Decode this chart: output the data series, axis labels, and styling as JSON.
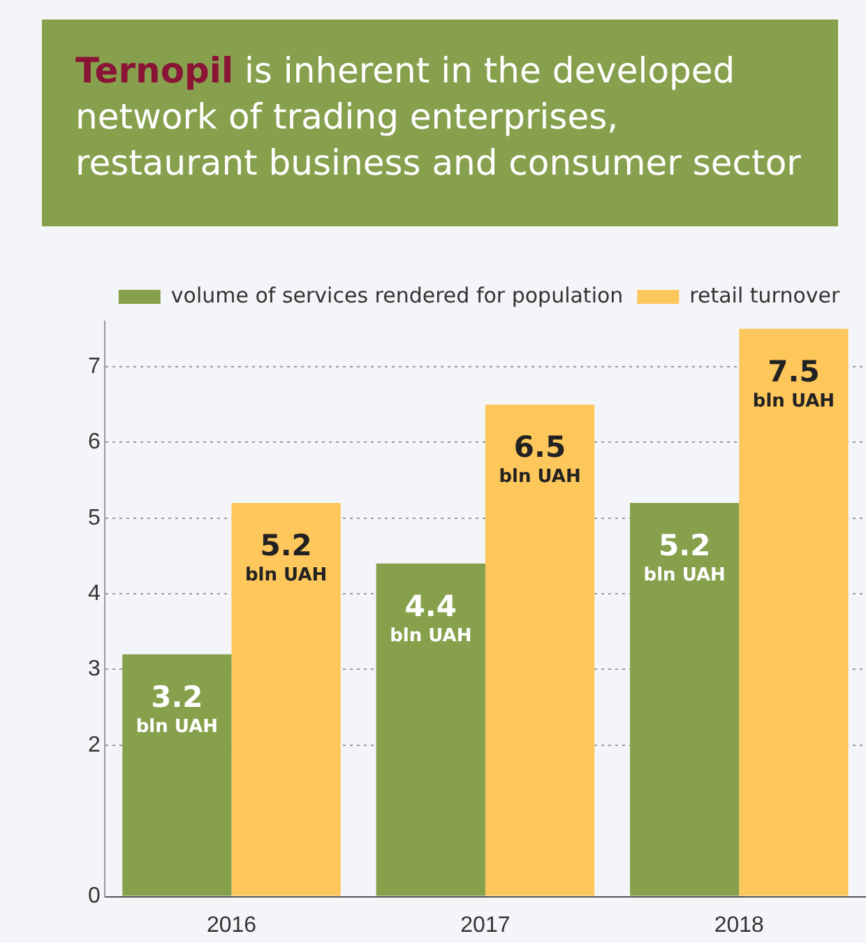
{
  "chart_data": {
    "type": "bar",
    "title": "Ternopil is inherent in the developed network of trading enterprises, restaurant business and consumer sector",
    "categories": [
      "2016",
      "2017",
      "2018"
    ],
    "series": [
      {
        "name": "volume of services rendered for population",
        "color": "#86a04b",
        "values": [
          3.2,
          4.4,
          5.2
        ],
        "value_labels": [
          "3.2 bln UAH",
          "4.4 bln UAH",
          "5.2 bln UAH"
        ]
      },
      {
        "name": "retail turnover",
        "color": "#fdc75b",
        "values": [
          5.2,
          6.5,
          7.5
        ],
        "value_labels": [
          "5.2 bln UAH",
          "6.5 bln UAH",
          "7.5 bln UAH"
        ]
      }
    ],
    "ylim": [
      0,
      7.6
    ],
    "yticks": [
      0,
      2,
      3,
      4,
      5,
      6,
      7
    ],
    "grid": "y",
    "legend": "top left"
  }
}
